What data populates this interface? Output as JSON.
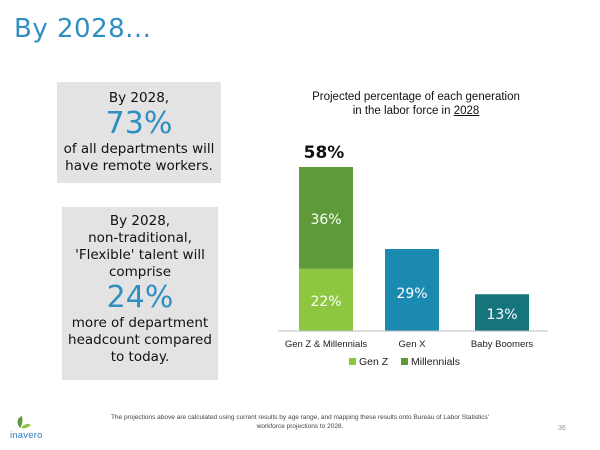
{
  "slide": {
    "title": "By 2028...",
    "footnote": "The projections above are calculated using current results by age range, and mapping these results onto Bureau of Labor Statistics' workforce projections to 2028.",
    "page_number": "36",
    "logo_text": "inavero"
  },
  "stat1": {
    "line1": "By 2028,",
    "big": "73%",
    "line2": "of all departments will",
    "line3": "have remote workers."
  },
  "stat2": {
    "line1": "By 2028,",
    "line2": "non-traditional,",
    "line3": "'Flexible' talent will",
    "line4": "comprise",
    "big": "24%",
    "line5": "more of department",
    "line6": "headcount compared",
    "line7": "to today."
  },
  "chart_title": {
    "line1": "Projected percentage of each generation",
    "line2_prefix": "in the labor force in ",
    "line2_year": "2028"
  },
  "colors": {
    "title_blue": "#2f8fc0",
    "gen_z": "#8dc63f",
    "millennials": "#5e9a3a",
    "gen_x": "#1a8ab0",
    "baby_boomers": "#16747c"
  },
  "chart_data": {
    "type": "bar",
    "stacked": true,
    "categories": [
      "Gen Z & Millennials",
      "Gen X",
      "Baby Boomers"
    ],
    "series": [
      {
        "name": "Gen Z",
        "values": [
          22,
          null,
          null
        ]
      },
      {
        "name": "Millennials",
        "values": [
          36,
          null,
          null
        ]
      },
      {
        "name": "",
        "values": [
          null,
          29,
          13
        ]
      }
    ],
    "totals": [
      58,
      29,
      13
    ],
    "data_labels": [
      "22%",
      "36%",
      "58%",
      "29%",
      "13%"
    ],
    "legend": [
      "Gen Z",
      "Millennials"
    ],
    "legend_position": "bottom",
    "ylim": [
      0,
      60
    ],
    "grid": false,
    "title": "Projected percentage of each generation in the labor force in 2028"
  }
}
